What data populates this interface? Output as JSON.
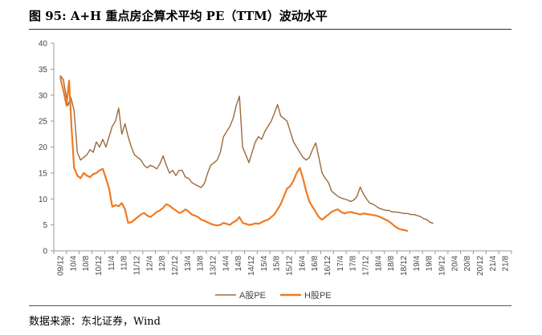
{
  "header": {
    "title": "图 95: A+H 重点房企算术平均 PE（TTM）波动水平"
  },
  "footer": {
    "source": "数据来源：东北证券，Wind"
  },
  "chart_data": {
    "type": "line",
    "ylim": [
      0,
      40
    ],
    "yticks": [
      0,
      5,
      10,
      15,
      20,
      25,
      30,
      35,
      40
    ],
    "categories": [
      "09/12",
      "10/4",
      "10/8",
      "10/12",
      "11/4",
      "11/8",
      "11/12",
      "12/4",
      "12/8",
      "12/12",
      "13/4",
      "13/8",
      "13/12",
      "14/4",
      "14/8",
      "14/12",
      "15/4",
      "15/8",
      "15/12",
      "16/4",
      "16/8",
      "16/12",
      "17/4",
      "17/8",
      "17/12",
      "18/4",
      "18/8",
      "18/12",
      "19/4",
      "19/8",
      "19/12",
      "20/4",
      "20/8",
      "20/12",
      "21/4",
      "21/8"
    ],
    "legend_position": "bottom",
    "series": [
      {
        "name": "A股PE",
        "color": "#9a6b3b",
        "values": [
          [
            0,
            33.8
          ],
          [
            0.25,
            33
          ],
          [
            0.6,
            28
          ],
          [
            0.85,
            29.5
          ],
          [
            1.1,
            27
          ],
          [
            1.35,
            19
          ],
          [
            1.6,
            17.5
          ],
          [
            1.85,
            18
          ],
          [
            2.1,
            18.5
          ],
          [
            2.35,
            19.5
          ],
          [
            2.6,
            19
          ],
          [
            2.85,
            21
          ],
          [
            3.1,
            20
          ],
          [
            3.35,
            21.5
          ],
          [
            3.6,
            20
          ],
          [
            3.85,
            22
          ],
          [
            4.1,
            24
          ],
          [
            4.35,
            25
          ],
          [
            4.6,
            27.5
          ],
          [
            4.85,
            22.5
          ],
          [
            5.1,
            24.5
          ],
          [
            5.35,
            22
          ],
          [
            5.6,
            20
          ],
          [
            5.85,
            18.5
          ],
          [
            6.1,
            18
          ],
          [
            6.35,
            17.5
          ],
          [
            6.6,
            16.5
          ],
          [
            6.85,
            16
          ],
          [
            7.1,
            16.5
          ],
          [
            7.35,
            16.2
          ],
          [
            7.6,
            15.8
          ],
          [
            7.85,
            16.8
          ],
          [
            8.1,
            18.3
          ],
          [
            8.35,
            16.5
          ],
          [
            8.6,
            15
          ],
          [
            8.85,
            15.5
          ],
          [
            9.1,
            14.5
          ],
          [
            9.35,
            15.5
          ],
          [
            9.6,
            15.5
          ],
          [
            9.85,
            14.2
          ],
          [
            10.1,
            14
          ],
          [
            10.35,
            13.2
          ],
          [
            10.6,
            12.8
          ],
          [
            10.85,
            12.5
          ],
          [
            11.1,
            12.2
          ],
          [
            11.35,
            13
          ],
          [
            11.6,
            15
          ],
          [
            11.85,
            16.5
          ],
          [
            12.1,
            17
          ],
          [
            12.35,
            17.5
          ],
          [
            12.6,
            19
          ],
          [
            12.85,
            22
          ],
          [
            13.1,
            23
          ],
          [
            13.35,
            24
          ],
          [
            13.6,
            25.5
          ],
          [
            13.85,
            28
          ],
          [
            14.1,
            29.8
          ],
          [
            14.35,
            20
          ],
          [
            14.6,
            18.5
          ],
          [
            14.85,
            17
          ],
          [
            15.1,
            19
          ],
          [
            15.35,
            21
          ],
          [
            15.6,
            22
          ],
          [
            15.85,
            21.5
          ],
          [
            16.1,
            23
          ],
          [
            16.35,
            24
          ],
          [
            16.6,
            25
          ],
          [
            16.85,
            26.5
          ],
          [
            17.1,
            28.2
          ],
          [
            17.35,
            26
          ],
          [
            17.6,
            25.5
          ],
          [
            17.85,
            25
          ],
          [
            18.1,
            23
          ],
          [
            18.35,
            21
          ],
          [
            18.6,
            20
          ],
          [
            18.85,
            19
          ],
          [
            19.1,
            18
          ],
          [
            19.35,
            17.5
          ],
          [
            19.6,
            18
          ],
          [
            19.85,
            19.5
          ],
          [
            20.1,
            20.8
          ],
          [
            20.35,
            18
          ],
          [
            20.6,
            15
          ],
          [
            20.85,
            14
          ],
          [
            21.1,
            13.2
          ],
          [
            21.35,
            11.5
          ],
          [
            21.6,
            11
          ],
          [
            21.85,
            10.5
          ],
          [
            22.1,
            10.2
          ],
          [
            22.35,
            10
          ],
          [
            22.6,
            9.8
          ],
          [
            22.85,
            9.5
          ],
          [
            23.1,
            9.8
          ],
          [
            23.35,
            10.5
          ],
          [
            23.6,
            12.3
          ],
          [
            23.85,
            11
          ],
          [
            24.1,
            10
          ],
          [
            24.35,
            9.2
          ],
          [
            24.6,
            9
          ],
          [
            24.85,
            8.6
          ],
          [
            25.1,
            8.2
          ],
          [
            25.35,
            8
          ],
          [
            25.6,
            7.8
          ],
          [
            25.85,
            7.8
          ],
          [
            26.1,
            7.5
          ],
          [
            26.35,
            7.5
          ],
          [
            26.6,
            7.4
          ],
          [
            26.85,
            7.3
          ],
          [
            27.1,
            7.2
          ],
          [
            27.35,
            7.2
          ],
          [
            27.6,
            7
          ],
          [
            27.85,
            7
          ],
          [
            28.1,
            6.8
          ],
          [
            28.35,
            6.6
          ],
          [
            28.6,
            6.2
          ],
          [
            28.85,
            6
          ],
          [
            29.1,
            5.5
          ],
          [
            29.35,
            5.3
          ]
        ]
      },
      {
        "name": "H股PE",
        "color": "#f07a22",
        "values": [
          [
            0,
            33.5
          ],
          [
            0.25,
            31
          ],
          [
            0.5,
            28
          ],
          [
            0.7,
            32.8
          ],
          [
            0.9,
            23.5
          ],
          [
            1.1,
            16
          ],
          [
            1.35,
            14.5
          ],
          [
            1.6,
            14
          ],
          [
            1.85,
            15
          ],
          [
            2.1,
            14.5
          ],
          [
            2.35,
            14.2
          ],
          [
            2.6,
            14.8
          ],
          [
            2.85,
            15
          ],
          [
            3.1,
            15.5
          ],
          [
            3.35,
            15.8
          ],
          [
            3.6,
            14
          ],
          [
            3.85,
            12
          ],
          [
            4.1,
            8.5
          ],
          [
            4.35,
            8.8
          ],
          [
            4.6,
            8.6
          ],
          [
            4.85,
            9.2
          ],
          [
            5.1,
            8
          ],
          [
            5.35,
            5.4
          ],
          [
            5.6,
            5.5
          ],
          [
            5.85,
            6
          ],
          [
            6.1,
            6.5
          ],
          [
            6.35,
            7
          ],
          [
            6.6,
            7.3
          ],
          [
            6.85,
            6.8
          ],
          [
            7.1,
            6.5
          ],
          [
            7.35,
            7
          ],
          [
            7.6,
            7.5
          ],
          [
            7.85,
            7.8
          ],
          [
            8.1,
            8.3
          ],
          [
            8.35,
            9
          ],
          [
            8.6,
            8.7
          ],
          [
            8.85,
            8.2
          ],
          [
            9.1,
            7.8
          ],
          [
            9.35,
            7.3
          ],
          [
            9.6,
            7.5
          ],
          [
            9.85,
            8
          ],
          [
            10.1,
            7.6
          ],
          [
            10.35,
            7
          ],
          [
            10.6,
            6.8
          ],
          [
            10.85,
            6.5
          ],
          [
            11.1,
            6
          ],
          [
            11.35,
            5.8
          ],
          [
            11.6,
            5.5
          ],
          [
            11.85,
            5.2
          ],
          [
            12.1,
            5
          ],
          [
            12.35,
            4.9
          ],
          [
            12.6,
            5
          ],
          [
            12.85,
            5.4
          ],
          [
            13.1,
            5.2
          ],
          [
            13.35,
            5
          ],
          [
            13.6,
            5.5
          ],
          [
            13.85,
            5.8
          ],
          [
            14.1,
            6.5
          ],
          [
            14.35,
            5.4
          ],
          [
            14.6,
            5.2
          ],
          [
            14.85,
            5
          ],
          [
            15.1,
            5.1
          ],
          [
            15.35,
            5.3
          ],
          [
            15.6,
            5.2
          ],
          [
            15.85,
            5.5
          ],
          [
            16.1,
            5.8
          ],
          [
            16.35,
            6
          ],
          [
            16.6,
            6.5
          ],
          [
            16.85,
            7
          ],
          [
            17.1,
            8
          ],
          [
            17.35,
            9
          ],
          [
            17.6,
            10.5
          ],
          [
            17.85,
            12
          ],
          [
            18.1,
            12.5
          ],
          [
            18.35,
            13.5
          ],
          [
            18.6,
            15
          ],
          [
            18.85,
            16
          ],
          [
            19.1,
            14
          ],
          [
            19.35,
            11.5
          ],
          [
            19.6,
            9.5
          ],
          [
            19.85,
            8.5
          ],
          [
            20.1,
            7.5
          ],
          [
            20.35,
            6.5
          ],
          [
            20.6,
            6
          ],
          [
            20.85,
            6.5
          ],
          [
            21.1,
            7
          ],
          [
            21.35,
            7.5
          ],
          [
            21.6,
            7.8
          ],
          [
            21.85,
            8
          ],
          [
            22.1,
            7.5
          ],
          [
            22.35,
            7.2
          ],
          [
            22.6,
            7.4
          ],
          [
            22.85,
            7.5
          ],
          [
            23.1,
            7.3
          ],
          [
            23.35,
            7.2
          ],
          [
            23.6,
            7
          ],
          [
            23.85,
            7.2
          ],
          [
            24.1,
            7.1
          ],
          [
            24.35,
            7
          ],
          [
            24.6,
            6.9
          ],
          [
            24.85,
            6.8
          ],
          [
            25.1,
            6.6
          ],
          [
            25.35,
            6.3
          ],
          [
            25.6,
            6
          ],
          [
            25.85,
            5.7
          ],
          [
            26.1,
            5.2
          ],
          [
            26.35,
            4.7
          ],
          [
            26.6,
            4.3
          ],
          [
            26.85,
            4.1
          ],
          [
            27.1,
            4
          ],
          [
            27.35,
            3.8
          ]
        ]
      }
    ]
  }
}
